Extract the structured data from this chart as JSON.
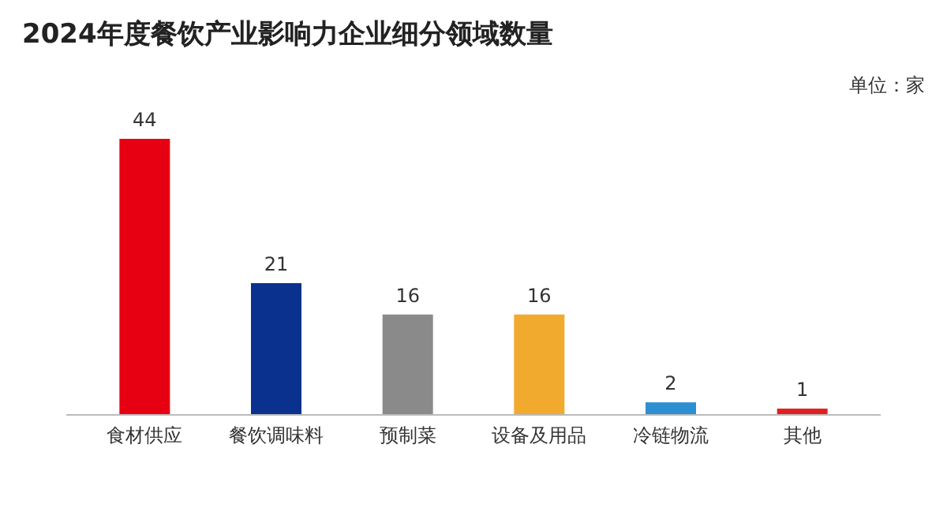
{
  "chart_data": {
    "type": "bar",
    "title": "2024年度餐饮产业影响力企业细分领域数量",
    "annotations": [
      "单位：家"
    ],
    "categories": [
      "食材供应",
      "餐饮调味料",
      "预制菜",
      "设备及用品",
      "冷链物流",
      "其他"
    ],
    "values": [
      44,
      21,
      16,
      16,
      2,
      1
    ],
    "colors": [
      "#e60012",
      "#0b318f",
      "#8a8a8a",
      "#f2aa2e",
      "#2b8fd1",
      "#e02020"
    ],
    "data_labels": true
  }
}
